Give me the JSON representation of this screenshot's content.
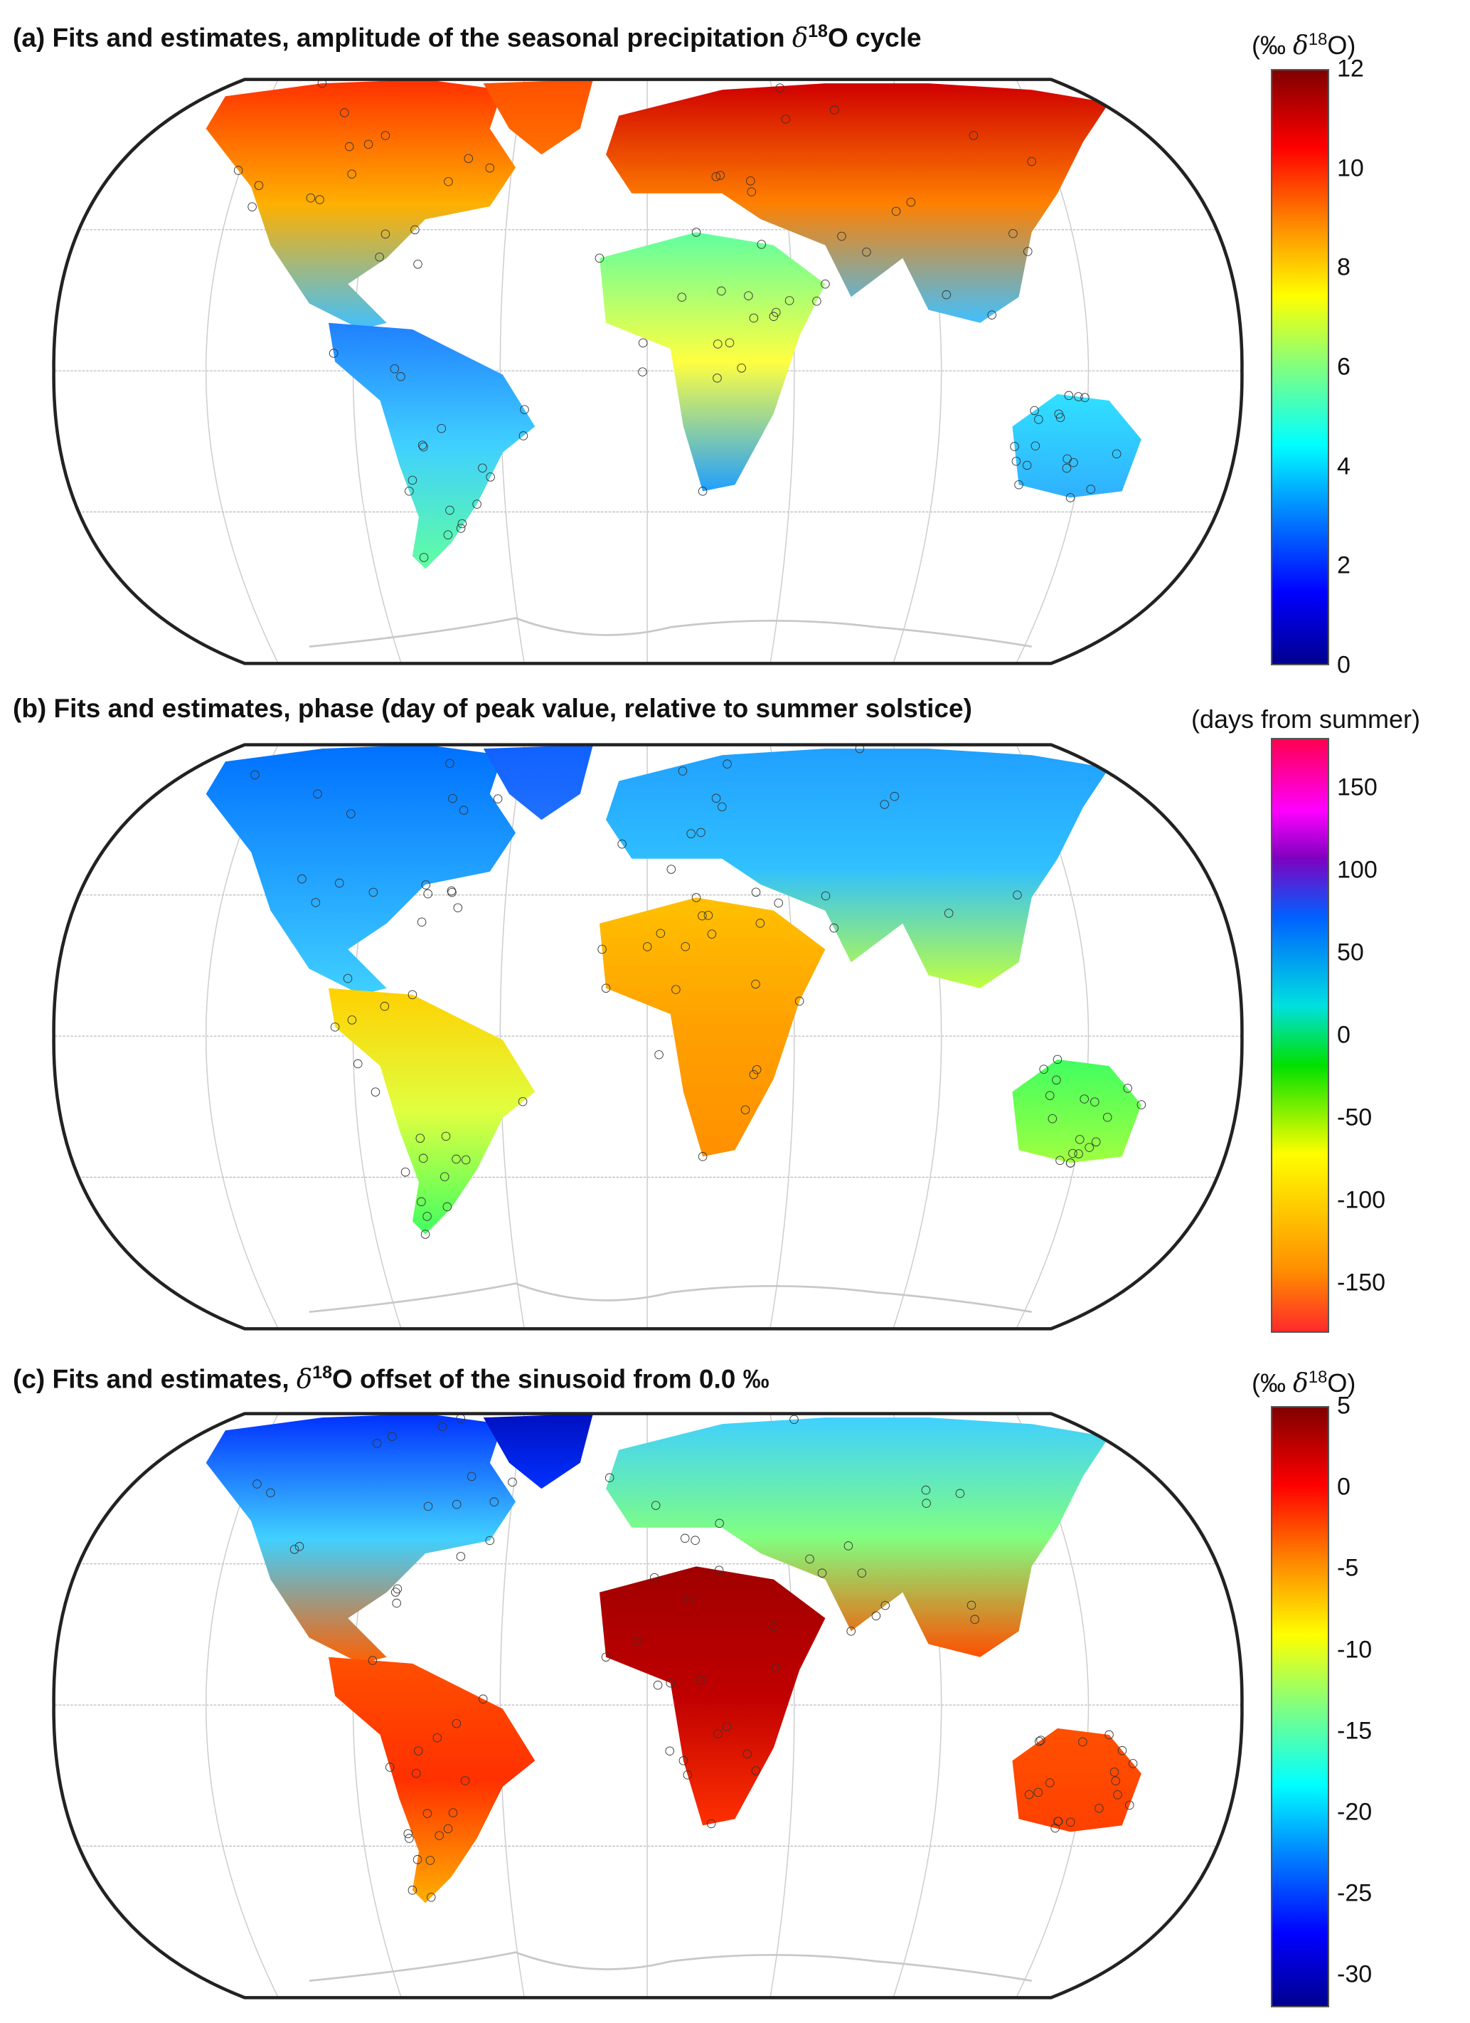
{
  "panels": [
    {
      "id": "a",
      "title": {
        "prefix": "(a) Fits and estimates, amplitude of the seasonal precipitation ",
        "delta": "δ",
        "sup": "18",
        "suffix": "O cycle"
      },
      "colorbar": {
        "unit_open": "(‰ ",
        "delta": "δ",
        "sup": "18",
        "unit_close": "O)",
        "range": [
          0,
          12
        ],
        "ticks": [
          "0",
          "2",
          "4",
          "6",
          "8",
          "10",
          "12"
        ],
        "colormap": "jet"
      }
    },
    {
      "id": "b",
      "title": {
        "prefix": "(b) Fits and estimates, phase (day of peak value, relative to summer solstice)",
        "delta": "",
        "sup": "",
        "suffix": ""
      },
      "colorbar": {
        "unit_open": "(days from summer)",
        "delta": "",
        "sup": "",
        "unit_close": "",
        "range": [
          -180,
          180
        ],
        "ticks": [
          "-150",
          "-100",
          "-50",
          "0",
          "50",
          "100",
          "150"
        ],
        "colormap": "cyclic"
      }
    },
    {
      "id": "c",
      "title": {
        "prefix": "(c) Fits and estimates, ",
        "delta": "δ",
        "sup": "18",
        "suffix": "O offset of the sinusoid from 0.0 ‰"
      },
      "colorbar": {
        "unit_open": "(‰ ",
        "delta": "δ",
        "sup": "18",
        "unit_close": "O)",
        "range": [
          -32,
          5
        ],
        "ticks": [
          "-30",
          "-25",
          "-20",
          "-15",
          "-10",
          "-5",
          "0",
          "5"
        ],
        "colormap": "jet"
      }
    }
  ]
}
